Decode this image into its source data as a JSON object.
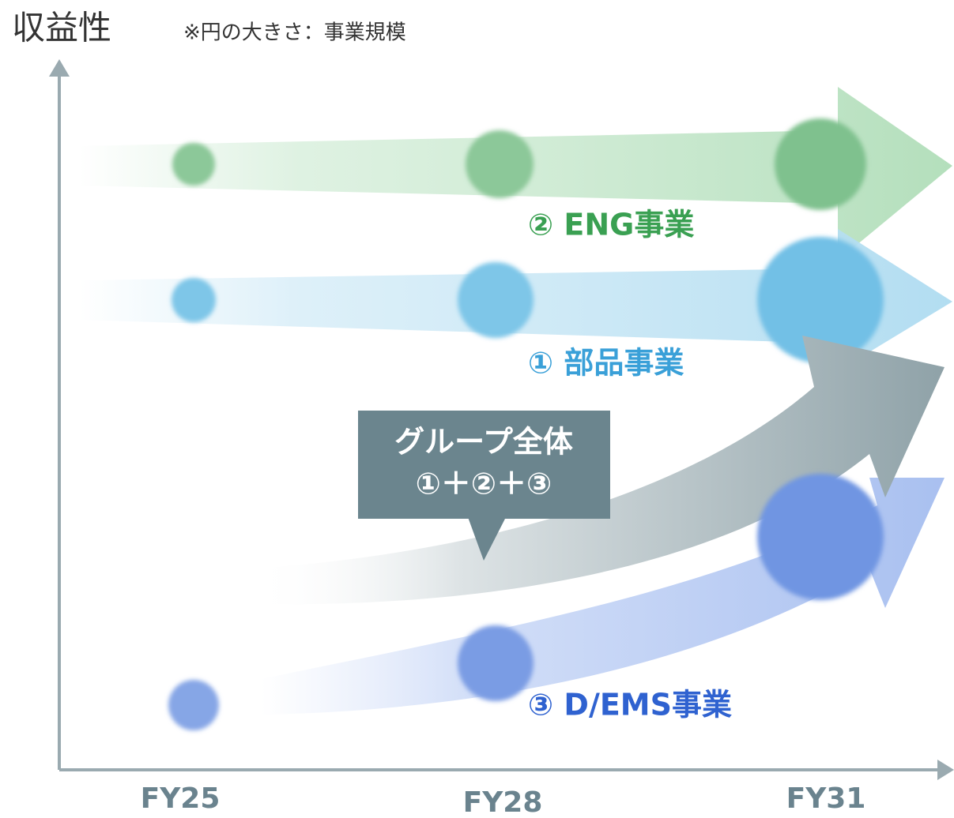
{
  "y_axis_label": "収益性",
  "note": "※円の大きさ：事業規模",
  "x_labels": [
    "FY25",
    "FY28",
    "FY31"
  ],
  "businesses": [
    {
      "label": "② ENG事業"
    },
    {
      "label": "① 部品事業"
    },
    {
      "label": "③ D/EMS事業"
    }
  ],
  "callout": {
    "lines": [
      "グループ全体",
      "①＋②＋③"
    ]
  }
}
